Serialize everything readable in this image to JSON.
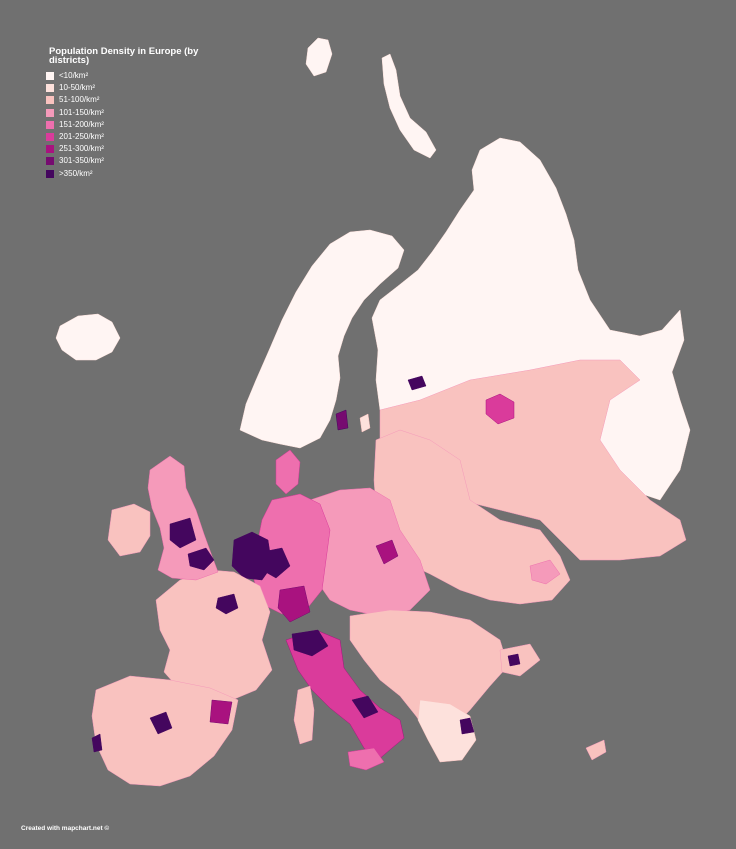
{
  "map": {
    "title": "Population Density in Europe (by districts)",
    "legend": [
      {
        "label": "<10/km²",
        "color": "#fff5f3"
      },
      {
        "label": "10-50/km²",
        "color": "#fde1dc"
      },
      {
        "label": "51-100/km²",
        "color": "#f9c2bf"
      },
      {
        "label": "101-150/km²",
        "color": "#f59aba"
      },
      {
        "label": "151-200/km²",
        "color": "#ee6fae"
      },
      {
        "label": "201-250/km²",
        "color": "#da3b9b"
      },
      {
        "label": "251-300/km²",
        "color": "#a9127f"
      },
      {
        "label": "301-350/km²",
        "color": "#760b70"
      },
      {
        "label": ">350/km²",
        "color": "#44065e"
      }
    ],
    "sea_color": "#707070",
    "credit": "Created with mapchart.net ©"
  }
}
